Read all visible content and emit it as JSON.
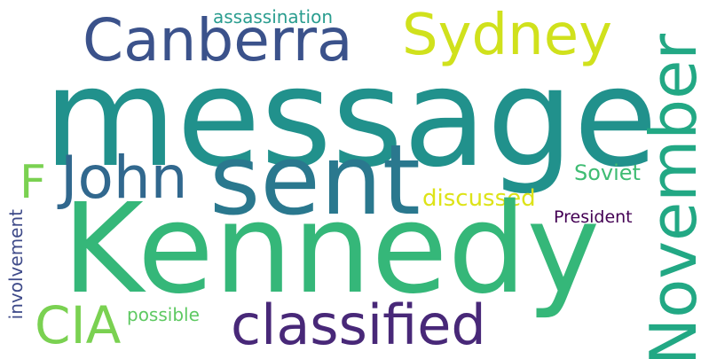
{
  "words": {
    "message": {
      "text": "message",
      "color": "#21918c"
    },
    "kennedy": {
      "text": "Kennedy",
      "color": "#35b779"
    },
    "sent": {
      "text": "sent",
      "color": "#2a788e"
    },
    "canberra": {
      "text": "Canberra",
      "color": "#3b528b"
    },
    "sydney": {
      "text": "Sydney",
      "color": "#d0e11c"
    },
    "november": {
      "text": "November",
      "color": "#22a884"
    },
    "john": {
      "text": "John",
      "color": "#31688e"
    },
    "f": {
      "text": "F",
      "color": "#7ad151"
    },
    "cia": {
      "text": "CIA",
      "color": "#7ad151"
    },
    "classified": {
      "text": "classified",
      "color": "#482878"
    },
    "assassination": {
      "text": "assassination",
      "color": "#2a9d8f"
    },
    "soviet": {
      "text": "Soviet",
      "color": "#3fbc73"
    },
    "discussed": {
      "text": "discussed",
      "color": "#dde318"
    },
    "president": {
      "text": "President",
      "color": "#440154"
    },
    "possible": {
      "text": "possible",
      "color": "#5ec962"
    },
    "involvement": {
      "text": "involvement",
      "color": "#3e4a89"
    }
  }
}
